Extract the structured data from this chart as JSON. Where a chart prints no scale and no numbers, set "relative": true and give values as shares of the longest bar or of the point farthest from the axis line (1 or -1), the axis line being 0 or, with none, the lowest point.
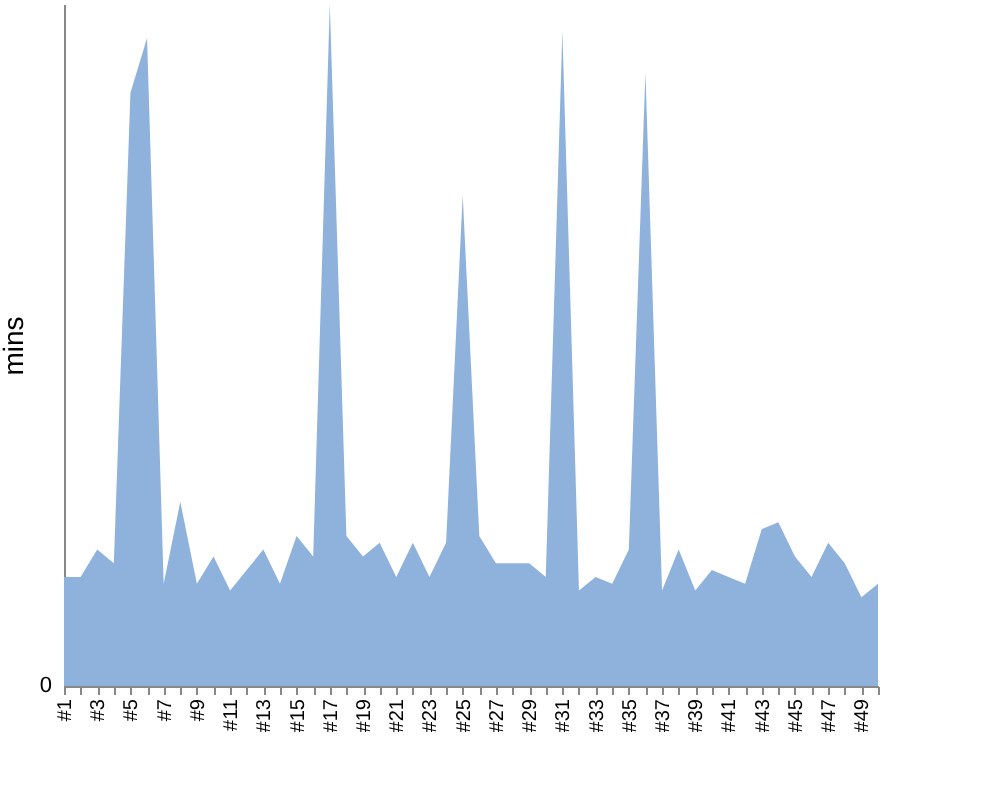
{
  "chart_data": {
    "type": "area",
    "ylabel": "mins",
    "relative": true,
    "grid": false,
    "annotations": [
      "0"
    ],
    "categories": [
      "#1",
      null,
      "#3",
      null,
      "#5",
      null,
      "#7",
      null,
      "#9",
      null,
      "#11",
      null,
      "#13",
      null,
      "#15",
      null,
      "#17",
      null,
      "#19",
      null,
      "#21",
      null,
      "#23",
      null,
      "#25",
      null,
      "#27",
      null,
      "#29",
      null,
      "#31",
      null,
      "#33",
      null,
      "#35",
      null,
      "#37",
      null,
      "#39",
      null,
      "#41",
      null,
      "#43",
      null,
      "#45",
      null,
      "#47",
      null,
      "#49",
      null
    ],
    "series": [
      {
        "color": "#8fb2dc",
        "values": [
          0.16,
          0.16,
          0.2,
          0.18,
          0.87,
          0.95,
          0.15,
          0.27,
          0.15,
          0.19,
          0.14,
          0.17,
          0.2,
          0.15,
          0.22,
          0.19,
          1,
          0.22,
          0.19,
          0.21,
          0.16,
          0.21,
          0.16,
          0.21,
          0.72,
          0.22,
          0.18,
          0.18,
          0.18,
          0.16,
          0.96,
          0.14,
          0.16,
          0.15,
          0.2,
          0.9,
          0.14,
          0.2,
          0.14,
          0.17,
          0.16,
          0.15,
          0.23,
          0.24,
          0.19,
          0.16,
          0.21,
          0.18,
          0.13,
          0.15
        ]
      }
    ]
  }
}
